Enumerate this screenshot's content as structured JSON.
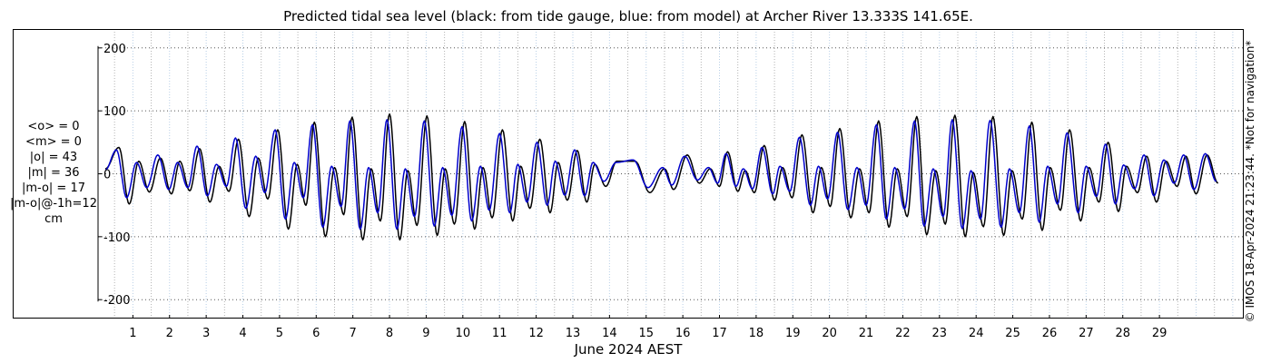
{
  "chart_data": {
    "type": "line",
    "title": "Predicted tidal sea level (black: from tide gauge, blue: from model) at Archer River 13.333S 141.65E.",
    "xlabel": "June 2024 AEST",
    "ylabel": "",
    "x_ticks": [
      "1",
      "2",
      "3",
      "4",
      "5",
      "6",
      "7",
      "8",
      "9",
      "10",
      "11",
      "12",
      "13",
      "14",
      "15",
      "16",
      "17",
      "18",
      "19",
      "20",
      "21",
      "22",
      "23",
      "24",
      "25",
      "26",
      "27",
      "28",
      "29"
    ],
    "y_ticks": [
      "-200",
      "-100",
      "0",
      "100",
      "200"
    ],
    "ylim": [
      -230,
      230
    ],
    "xlim_days": [
      -0.45,
      30.8
    ],
    "grid": true,
    "series": [
      {
        "color": "#000000",
        "peaks": [
          [
            -0.25,
            8
          ],
          [
            0.12,
            42
          ],
          [
            0.4,
            -48
          ],
          [
            0.66,
            20
          ],
          [
            0.95,
            -29
          ],
          [
            1.25,
            25
          ],
          [
            1.55,
            -32
          ],
          [
            1.78,
            20
          ],
          [
            2.05,
            -27
          ],
          [
            2.32,
            40
          ],
          [
            2.6,
            -45
          ],
          [
            2.85,
            12
          ],
          [
            3.12,
            -28
          ],
          [
            3.38,
            55
          ],
          [
            3.67,
            -68
          ],
          [
            3.92,
            25
          ],
          [
            4.18,
            -40
          ],
          [
            4.45,
            70
          ],
          [
            4.74,
            -88
          ],
          [
            4.98,
            15
          ],
          [
            5.22,
            -50
          ],
          [
            5.45,
            82
          ],
          [
            5.75,
            -100
          ],
          [
            6.0,
            10
          ],
          [
            6.25,
            -65
          ],
          [
            6.48,
            90
          ],
          [
            6.77,
            -105
          ],
          [
            7.0,
            8
          ],
          [
            7.25,
            -75
          ],
          [
            7.5,
            95
          ],
          [
            7.78,
            -105
          ],
          [
            8.0,
            5
          ],
          [
            8.25,
            -82
          ],
          [
            8.52,
            92
          ],
          [
            8.8,
            -98
          ],
          [
            9.02,
            8
          ],
          [
            9.27,
            -80
          ],
          [
            9.55,
            83
          ],
          [
            9.82,
            -88
          ],
          [
            10.05,
            10
          ],
          [
            10.3,
            -70
          ],
          [
            10.58,
            70
          ],
          [
            10.86,
            -75
          ],
          [
            11.08,
            12
          ],
          [
            11.33,
            -55
          ],
          [
            11.6,
            55
          ],
          [
            11.88,
            -62
          ],
          [
            12.1,
            18
          ],
          [
            12.35,
            -42
          ],
          [
            12.62,
            37
          ],
          [
            12.88,
            -45
          ],
          [
            13.1,
            15
          ],
          [
            13.4,
            -20
          ],
          [
            13.7,
            20
          ],
          [
            14.2,
            20
          ],
          [
            14.6,
            -30
          ],
          [
            15.0,
            8
          ],
          [
            15.25,
            -25
          ],
          [
            15.62,
            30
          ],
          [
            15.95,
            -15
          ],
          [
            16.25,
            8
          ],
          [
            16.5,
            -20
          ],
          [
            16.72,
            35
          ],
          [
            17.0,
            -28
          ],
          [
            17.2,
            5
          ],
          [
            17.45,
            -30
          ],
          [
            17.72,
            45
          ],
          [
            18.0,
            -42
          ],
          [
            18.22,
            10
          ],
          [
            18.48,
            -38
          ],
          [
            18.75,
            62
          ],
          [
            19.05,
            -62
          ],
          [
            19.28,
            10
          ],
          [
            19.52,
            -52
          ],
          [
            19.78,
            72
          ],
          [
            20.08,
            -70
          ],
          [
            20.32,
            8
          ],
          [
            20.58,
            -62
          ],
          [
            20.84,
            84
          ],
          [
            21.12,
            -85
          ],
          [
            21.35,
            8
          ],
          [
            21.62,
            -68
          ],
          [
            21.88,
            91
          ],
          [
            22.15,
            -97
          ],
          [
            22.4,
            5
          ],
          [
            22.66,
            -80
          ],
          [
            22.92,
            93
          ],
          [
            23.2,
            -100
          ],
          [
            23.42,
            2
          ],
          [
            23.7,
            -84
          ],
          [
            23.96,
            91
          ],
          [
            24.25,
            -98
          ],
          [
            24.48,
            5
          ],
          [
            24.76,
            -72
          ],
          [
            25.02,
            82
          ],
          [
            25.3,
            -90
          ],
          [
            25.52,
            10
          ],
          [
            25.8,
            -58
          ],
          [
            26.05,
            70
          ],
          [
            26.35,
            -75
          ],
          [
            26.58,
            10
          ],
          [
            26.85,
            -45
          ],
          [
            27.1,
            50
          ],
          [
            27.38,
            -60
          ],
          [
            27.6,
            12
          ],
          [
            27.9,
            -30
          ],
          [
            28.15,
            28
          ],
          [
            28.42,
            -45
          ],
          [
            28.68,
            20
          ],
          [
            28.98,
            -20
          ],
          [
            29.22,
            28
          ],
          [
            29.5,
            -32
          ],
          [
            29.8,
            30
          ],
          [
            30.1,
            -15
          ]
        ]
      },
      {
        "color": "#0000cc",
        "peaks": [
          [
            -0.25,
            6
          ],
          [
            0.05,
            38
          ],
          [
            0.33,
            -38
          ],
          [
            0.6,
            18
          ],
          [
            0.88,
            -22
          ],
          [
            1.18,
            30
          ],
          [
            1.48,
            -25
          ],
          [
            1.72,
            18
          ],
          [
            2.0,
            -22
          ],
          [
            2.25,
            44
          ],
          [
            2.53,
            -35
          ],
          [
            2.78,
            15
          ],
          [
            3.05,
            -20
          ],
          [
            3.3,
            57
          ],
          [
            3.58,
            -55
          ],
          [
            3.85,
            28
          ],
          [
            4.1,
            -30
          ],
          [
            4.38,
            70
          ],
          [
            4.66,
            -72
          ],
          [
            4.9,
            18
          ],
          [
            5.15,
            -38
          ],
          [
            5.4,
            78
          ],
          [
            5.68,
            -85
          ],
          [
            5.92,
            12
          ],
          [
            6.18,
            -52
          ],
          [
            6.42,
            84
          ],
          [
            6.7,
            -88
          ],
          [
            6.93,
            10
          ],
          [
            7.18,
            -62
          ],
          [
            7.43,
            86
          ],
          [
            7.7,
            -88
          ],
          [
            7.93,
            8
          ],
          [
            8.18,
            -68
          ],
          [
            8.45,
            84
          ],
          [
            8.72,
            -83
          ],
          [
            8.95,
            10
          ],
          [
            9.2,
            -66
          ],
          [
            9.48,
            75
          ],
          [
            9.74,
            -75
          ],
          [
            9.98,
            12
          ],
          [
            10.22,
            -58
          ],
          [
            10.5,
            64
          ],
          [
            10.78,
            -62
          ],
          [
            11.0,
            15
          ],
          [
            11.25,
            -45
          ],
          [
            11.52,
            50
          ],
          [
            11.8,
            -50
          ],
          [
            12.02,
            20
          ],
          [
            12.28,
            -34
          ],
          [
            12.55,
            38
          ],
          [
            12.82,
            -35
          ],
          [
            13.05,
            18
          ],
          [
            13.35,
            -12
          ],
          [
            13.68,
            18
          ],
          [
            14.15,
            22
          ],
          [
            14.55,
            -22
          ],
          [
            14.95,
            10
          ],
          [
            15.2,
            -18
          ],
          [
            15.55,
            28
          ],
          [
            15.9,
            -10
          ],
          [
            16.2,
            10
          ],
          [
            16.45,
            -15
          ],
          [
            16.68,
            32
          ],
          [
            16.95,
            -20
          ],
          [
            17.15,
            8
          ],
          [
            17.4,
            -24
          ],
          [
            17.66,
            42
          ],
          [
            17.95,
            -32
          ],
          [
            18.15,
            12
          ],
          [
            18.42,
            -28
          ],
          [
            18.68,
            58
          ],
          [
            18.98,
            -50
          ],
          [
            19.2,
            12
          ],
          [
            19.45,
            -40
          ],
          [
            19.72,
            66
          ],
          [
            20.0,
            -57
          ],
          [
            20.25,
            10
          ],
          [
            20.5,
            -50
          ],
          [
            20.78,
            78
          ],
          [
            21.05,
            -72
          ],
          [
            21.28,
            10
          ],
          [
            21.55,
            -56
          ],
          [
            21.82,
            84
          ],
          [
            22.08,
            -83
          ],
          [
            22.33,
            8
          ],
          [
            22.6,
            -68
          ],
          [
            22.85,
            86
          ],
          [
            23.12,
            -87
          ],
          [
            23.36,
            5
          ],
          [
            23.62,
            -72
          ],
          [
            23.88,
            85
          ],
          [
            24.18,
            -85
          ],
          [
            24.41,
            8
          ],
          [
            24.68,
            -62
          ],
          [
            24.95,
            76
          ],
          [
            25.22,
            -77
          ],
          [
            25.45,
            12
          ],
          [
            25.72,
            -48
          ],
          [
            25.98,
            65
          ],
          [
            26.28,
            -62
          ],
          [
            26.5,
            12
          ],
          [
            26.78,
            -36
          ],
          [
            27.03,
            47
          ],
          [
            27.3,
            -48
          ],
          [
            27.52,
            14
          ],
          [
            27.82,
            -24
          ],
          [
            28.08,
            30
          ],
          [
            28.35,
            -35
          ],
          [
            28.62,
            22
          ],
          [
            28.9,
            -15
          ],
          [
            29.16,
            30
          ],
          [
            29.44,
            -25
          ],
          [
            29.75,
            32
          ],
          [
            30.05,
            -12
          ]
        ]
      }
    ]
  },
  "stats": {
    "lines": [
      "<o> = 0",
      "<m> = 0",
      "|o| = 43",
      "|m| = 36",
      "|m-o| = 17",
      "|m-o|@-1h=12",
      "cm"
    ]
  },
  "credit": "© IMOS 18-Apr-2024 21:23:44. *Not for navigation*"
}
